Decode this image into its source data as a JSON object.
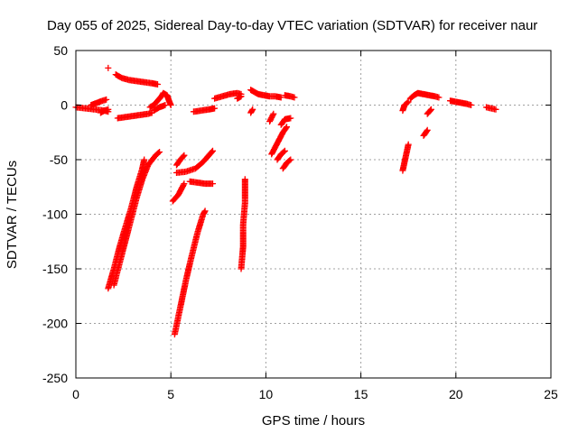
{
  "chart_data": {
    "type": "scatter",
    "title": "Day 055 of 2025, Sidereal Day-to-day VTEC variation (SDTVAR) for receiver naur",
    "xlabel": "GPS time / hours",
    "ylabel": "SDTVAR / TECUs",
    "xlim": [
      0,
      25
    ],
    "ylim": [
      -250,
      50
    ],
    "xticks": [
      0,
      5,
      10,
      15,
      20,
      25
    ],
    "yticks": [
      -250,
      -200,
      -150,
      -100,
      -50,
      0,
      50
    ],
    "grid": true,
    "marker": "+",
    "color": "#ff0000",
    "segments": [
      [
        [
          0.0,
          -2
        ],
        [
          0.5,
          -3
        ],
        [
          1.0,
          -4
        ],
        [
          1.5,
          -5
        ],
        [
          1.7,
          -6
        ]
      ],
      [
        [
          0.8,
          0
        ],
        [
          1.1,
          2
        ],
        [
          1.4,
          4
        ],
        [
          1.6,
          5
        ]
      ],
      [
        [
          1.3,
          -7
        ],
        [
          1.5,
          -5
        ],
        [
          1.7,
          -4
        ]
      ],
      [
        [
          1.7,
          34
        ]
      ],
      [
        [
          2.1,
          28
        ],
        [
          2.4,
          25
        ],
        [
          2.8,
          23
        ],
        [
          3.2,
          22
        ],
        [
          3.6,
          21
        ],
        [
          4.0,
          20
        ],
        [
          4.3,
          19
        ]
      ],
      [
        [
          2.2,
          -12
        ],
        [
          2.6,
          -11
        ],
        [
          3.0,
          -10
        ],
        [
          3.4,
          -9
        ],
        [
          3.8,
          -8
        ],
        [
          4.0,
          -7
        ]
      ],
      [
        [
          3.9,
          -2
        ],
        [
          4.1,
          0
        ],
        [
          4.3,
          4
        ],
        [
          4.5,
          8
        ],
        [
          4.6,
          11
        ],
        [
          4.8,
          9
        ],
        [
          4.9,
          4
        ],
        [
          5.0,
          0
        ]
      ],
      [
        [
          4.1,
          -5
        ],
        [
          4.4,
          -2
        ],
        [
          4.7,
          0
        ]
      ],
      [
        [
          1.7,
          -168
        ],
        [
          2.0,
          -150
        ],
        [
          2.3,
          -130
        ],
        [
          2.6,
          -112
        ],
        [
          2.9,
          -95
        ],
        [
          3.2,
          -75
        ],
        [
          3.5,
          -58
        ],
        [
          3.6,
          -50
        ]
      ],
      [
        [
          2.0,
          -165
        ],
        [
          2.3,
          -145
        ],
        [
          2.6,
          -125
        ],
        [
          2.9,
          -105
        ],
        [
          3.2,
          -85
        ],
        [
          3.5,
          -68
        ],
        [
          3.8,
          -55
        ],
        [
          4.2,
          -46
        ],
        [
          4.4,
          -43
        ]
      ],
      [
        [
          5.2,
          -210
        ],
        [
          5.5,
          -185
        ],
        [
          5.8,
          -160
        ],
        [
          6.1,
          -138
        ],
        [
          6.4,
          -117
        ],
        [
          6.7,
          -100
        ],
        [
          6.8,
          -97
        ]
      ],
      [
        [
          5.1,
          -88
        ],
        [
          5.4,
          -82
        ],
        [
          5.7,
          -72
        ]
      ],
      [
        [
          5.3,
          -62
        ],
        [
          5.8,
          -61
        ],
        [
          6.3,
          -58
        ],
        [
          6.7,
          -52
        ],
        [
          7.0,
          -46
        ],
        [
          7.2,
          -42
        ]
      ],
      [
        [
          5.3,
          -55
        ],
        [
          5.5,
          -50
        ],
        [
          5.7,
          -46
        ]
      ],
      [
        [
          6.0,
          -70
        ],
        [
          6.4,
          -71
        ],
        [
          6.8,
          -72
        ],
        [
          7.2,
          -72
        ]
      ],
      [
        [
          6.2,
          -6
        ],
        [
          6.6,
          -5
        ],
        [
          7.0,
          -4
        ],
        [
          7.3,
          -3
        ]
      ],
      [
        [
          7.3,
          6
        ],
        [
          7.7,
          8
        ],
        [
          8.1,
          10
        ],
        [
          8.5,
          11
        ],
        [
          8.7,
          10
        ]
      ],
      [
        [
          8.5,
          6
        ],
        [
          8.7,
          8
        ]
      ],
      [
        [
          8.7,
          -150
        ],
        [
          8.8,
          -130
        ],
        [
          8.8,
          -110
        ],
        [
          8.9,
          -90
        ],
        [
          8.9,
          -75
        ],
        [
          8.9,
          -68
        ]
      ],
      [
        [
          9.2,
          -7
        ],
        [
          9.3,
          -4
        ]
      ],
      [
        [
          9.2,
          14
        ],
        [
          9.4,
          12
        ],
        [
          9.6,
          10
        ],
        [
          9.9,
          9
        ],
        [
          10.2,
          8
        ],
        [
          10.5,
          8
        ],
        [
          10.8,
          7
        ]
      ],
      [
        [
          10.2,
          -15
        ],
        [
          10.4,
          -8
        ]
      ],
      [
        [
          10.3,
          -45
        ],
        [
          10.6,
          -35
        ],
        [
          10.9,
          -25
        ],
        [
          11.1,
          -20
        ]
      ],
      [
        [
          10.6,
          -50
        ],
        [
          10.8,
          -45
        ],
        [
          11.0,
          -42
        ]
      ],
      [
        [
          10.9,
          -58
        ],
        [
          11.1,
          -53
        ],
        [
          11.3,
          -50
        ]
      ],
      [
        [
          10.8,
          -18
        ],
        [
          11.0,
          -13
        ],
        [
          11.3,
          -12
        ]
      ],
      [
        [
          11.0,
          9
        ],
        [
          11.3,
          8
        ],
        [
          11.5,
          7
        ]
      ],
      [
        [
          17.2,
          -60
        ],
        [
          17.3,
          -52
        ],
        [
          17.4,
          -44
        ],
        [
          17.5,
          -36
        ]
      ],
      [
        [
          17.2,
          -5
        ],
        [
          17.3,
          0
        ],
        [
          17.5,
          3
        ]
      ],
      [
        [
          17.6,
          6
        ],
        [
          17.8,
          9
        ],
        [
          18.0,
          11
        ],
        [
          18.3,
          10
        ],
        [
          18.6,
          9
        ],
        [
          18.9,
          8
        ],
        [
          19.1,
          7
        ]
      ],
      [
        [
          18.3,
          -28
        ],
        [
          18.5,
          -23
        ]
      ],
      [
        [
          18.5,
          -8
        ],
        [
          18.7,
          -4
        ]
      ],
      [
        [
          19.7,
          4
        ],
        [
          20.0,
          3
        ],
        [
          20.3,
          2
        ],
        [
          20.6,
          1
        ],
        [
          20.8,
          0
        ]
      ],
      [
        [
          21.6,
          -2
        ],
        [
          22.1,
          -4
        ]
      ]
    ]
  }
}
